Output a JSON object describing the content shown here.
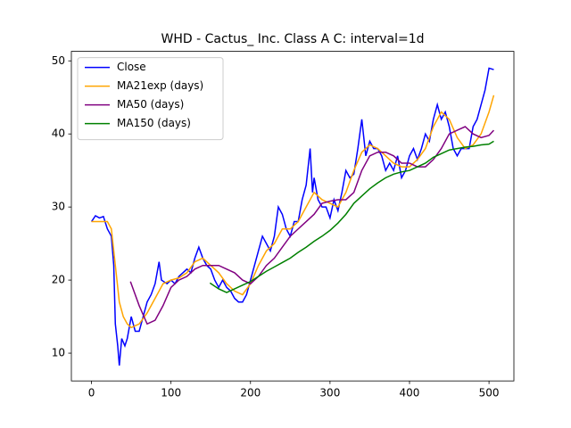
{
  "chart_data": {
    "type": "line",
    "title": "WHD - Cactus_ Inc. Class A C: interval=1d",
    "xlim": [
      -25.3,
      531.3
    ],
    "ylim": [
      6.2,
      51.3
    ],
    "xticks": [
      0,
      100,
      200,
      300,
      400,
      500
    ],
    "yticks": [
      10,
      20,
      30,
      40,
      50
    ],
    "legend": "upper left",
    "series": [
      {
        "name": "Close",
        "color": "#0000ff",
        "x": [
          0,
          5,
          10,
          15,
          20,
          25,
          28,
          30,
          33,
          35,
          38,
          42,
          45,
          50,
          55,
          60,
          65,
          70,
          75,
          80,
          85,
          88,
          95,
          100,
          105,
          110,
          115,
          120,
          125,
          130,
          135,
          140,
          145,
          150,
          155,
          160,
          165,
          170,
          175,
          180,
          185,
          190,
          195,
          200,
          205,
          210,
          215,
          220,
          225,
          230,
          235,
          240,
          245,
          250,
          255,
          260,
          265,
          270,
          275,
          278,
          280,
          285,
          290,
          295,
          300,
          305,
          310,
          315,
          320,
          325,
          330,
          335,
          340,
          345,
          350,
          355,
          360,
          365,
          370,
          375,
          380,
          385,
          390,
          395,
          400,
          405,
          410,
          415,
          420,
          425,
          430,
          435,
          440,
          445,
          450,
          455,
          460,
          465,
          470,
          475,
          480,
          485,
          490,
          495,
          500,
          506
        ],
        "values": [
          28,
          28.8,
          28.5,
          28.7,
          27,
          26,
          22,
          14,
          11,
          8.3,
          12,
          11,
          12,
          15,
          13,
          13,
          15,
          17,
          18,
          19.5,
          22.5,
          20,
          19.5,
          20,
          19.5,
          20.5,
          21,
          21.5,
          21,
          23,
          24.5,
          23,
          22,
          21.5,
          20,
          19,
          20,
          19,
          18.5,
          17.5,
          17,
          17,
          18,
          20,
          22,
          24,
          26,
          25,
          24,
          26,
          30,
          29,
          27,
          26,
          28,
          28,
          31,
          33,
          38,
          32,
          34,
          31,
          30,
          30,
          28.5,
          31,
          29.5,
          32,
          35,
          34,
          34.5,
          38,
          42,
          37,
          39,
          38,
          38,
          37,
          35,
          36,
          35,
          37,
          34,
          35,
          37,
          38,
          36.5,
          38,
          40,
          39,
          42,
          44,
          42,
          43,
          41,
          38,
          37,
          38,
          38,
          38,
          41,
          42,
          44,
          46,
          49,
          48.8
        ]
      },
      {
        "name": "MA21exp (days)",
        "color": "#ffa500",
        "x": [
          0,
          20,
          25,
          30,
          35,
          40,
          45,
          50,
          60,
          70,
          80,
          90,
          100,
          110,
          120,
          130,
          140,
          150,
          160,
          170,
          180,
          190,
          200,
          210,
          220,
          230,
          240,
          250,
          260,
          270,
          280,
          290,
          300,
          310,
          320,
          330,
          340,
          350,
          360,
          370,
          380,
          390,
          400,
          410,
          420,
          430,
          440,
          450,
          460,
          470,
          480,
          490,
          500,
          506
        ],
        "values": [
          28,
          28,
          27,
          22,
          17,
          15,
          14,
          13.5,
          14,
          15.5,
          17.5,
          19.5,
          20,
          20.3,
          21,
          22.5,
          23,
          22,
          21,
          19.5,
          18.5,
          18,
          19.5,
          22,
          24,
          25,
          27,
          27,
          28,
          30,
          32,
          31,
          30.5,
          30,
          32,
          35,
          37.5,
          38.5,
          38,
          37,
          36,
          35.5,
          35.5,
          36.5,
          38,
          41,
          43,
          42,
          39.5,
          38,
          38.5,
          40,
          43,
          45.3
        ]
      },
      {
        "name": "MA50 (days)",
        "color": "#800080",
        "x": [
          49,
          55,
          60,
          70,
          80,
          90,
          100,
          110,
          120,
          130,
          140,
          150,
          160,
          170,
          180,
          190,
          200,
          210,
          220,
          230,
          240,
          250,
          260,
          270,
          280,
          290,
          300,
          310,
          320,
          330,
          340,
          350,
          360,
          370,
          380,
          390,
          400,
          410,
          420,
          430,
          440,
          450,
          460,
          470,
          480,
          490,
          500,
          506
        ],
        "values": [
          19.8,
          18,
          16.5,
          14,
          14.5,
          16.5,
          19,
          20,
          20.5,
          21.5,
          22,
          22,
          22,
          21.5,
          21,
          20,
          19.5,
          20.5,
          22,
          23,
          24.5,
          26,
          27,
          28,
          29,
          30.5,
          30.8,
          31,
          31,
          32,
          35,
          37,
          37.5,
          37.5,
          37,
          36,
          36,
          35.5,
          35.5,
          36.5,
          38,
          40,
          40.5,
          41,
          40,
          39.5,
          39.8,
          40.5
        ]
      },
      {
        "name": "MA150 (days)",
        "color": "#008000",
        "x": [
          149,
          160,
          170,
          180,
          190,
          200,
          210,
          220,
          230,
          240,
          250,
          260,
          270,
          280,
          290,
          300,
          310,
          320,
          330,
          340,
          350,
          360,
          370,
          380,
          390,
          400,
          410,
          420,
          430,
          440,
          450,
          460,
          470,
          480,
          490,
          500,
          506
        ],
        "values": [
          19.6,
          18.8,
          18.3,
          18.8,
          19.3,
          19.8,
          20.5,
          21.2,
          21.8,
          22.4,
          23,
          23.8,
          24.5,
          25.3,
          26,
          26.8,
          27.8,
          29,
          30.5,
          31.5,
          32.5,
          33.3,
          34,
          34.5,
          34.8,
          35,
          35.5,
          36,
          36.8,
          37.3,
          37.8,
          38,
          38.2,
          38.3,
          38.5,
          38.6,
          39
        ]
      }
    ]
  }
}
